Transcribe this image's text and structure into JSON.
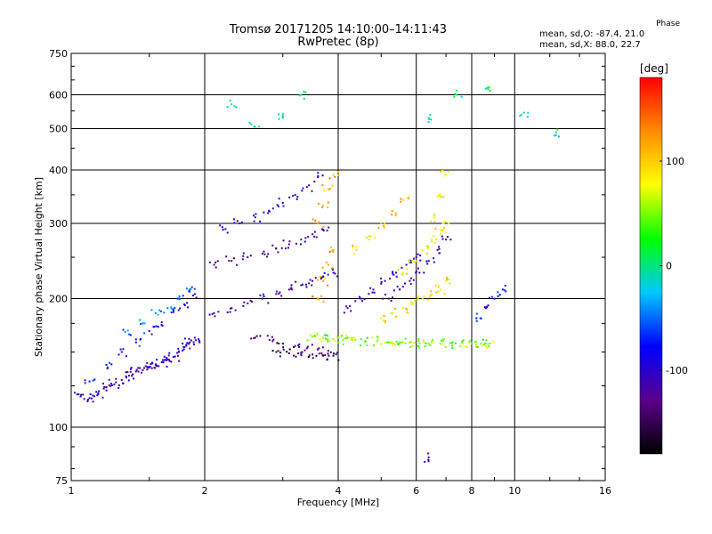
{
  "header": {
    "title_line1": "Tromsø 20171205 14:10:00–14:11:43",
    "title_line2": "RwPretec (8p)",
    "phase_title": "Phase",
    "phase_line1": "mean, sd,O: -87.4, 21.0",
    "phase_line2": "mean, sd,X: 88.0, 22.7"
  },
  "colorbar": {
    "unit": "[deg]",
    "ticks": [
      "100",
      "0",
      "-100"
    ],
    "tick_values": [
      100,
      0,
      -100
    ],
    "range": [
      -180,
      180
    ],
    "colors": [
      "#000000",
      "#5a008c",
      "#0000ff",
      "#00c8ff",
      "#00ff00",
      "#ffff00",
      "#ff8c00",
      "#ff0000"
    ]
  },
  "chart_data": {
    "type": "scatter",
    "title": "Tromsø 20171205 14:10:00–14:11:43",
    "subtitle": "RwPretec (8p)",
    "xlabel": "Frequency [MHz]",
    "ylabel": "Stationary phase Virtual Height [km]",
    "xscale": "log",
    "yscale": "log",
    "xlim": [
      1,
      16
    ],
    "ylim": [
      75,
      750
    ],
    "xticks": [
      1,
      2,
      4,
      6,
      8,
      10,
      16
    ],
    "yticks": [
      75,
      100,
      200,
      300,
      400,
      500,
      600,
      750
    ],
    "grid": true,
    "color_by": "phase [deg]",
    "series": [
      {
        "x": [
          1.05,
          1.1,
          1.15,
          1.2,
          1.25,
          1.3,
          1.35,
          1.4,
          1.45,
          1.5,
          1.55,
          1.6,
          1.65,
          1.7,
          1.75,
          1.8,
          1.85,
          1.9
        ],
        "y": [
          118,
          117,
          120,
          124,
          126,
          129,
          132,
          135,
          136,
          138,
          140,
          142,
          144,
          146,
          150,
          154,
          158,
          162
        ],
        "phase": -110
      },
      {
        "x": [
          1.1,
          1.2,
          1.3,
          1.4,
          1.5,
          1.6,
          1.7,
          1.8,
          1.9
        ],
        "y": [
          128,
          140,
          150,
          158,
          168,
          176,
          186,
          194,
          205
        ],
        "phase": -80
      },
      {
        "x": [
          1.35,
          1.45,
          1.55,
          1.65,
          1.75,
          1.85
        ],
        "y": [
          165,
          175,
          185,
          190,
          200,
          210
        ],
        "phase": -50
      },
      {
        "x": [
          2.1,
          2.3,
          2.5,
          2.7,
          2.9,
          3.1,
          3.3,
          3.5,
          3.7,
          3.9
        ],
        "y": [
          185,
          190,
          195,
          200,
          205,
          210,
          215,
          220,
          225,
          230
        ],
        "phase": -110
      },
      {
        "x": [
          2.1,
          2.3,
          2.5,
          2.7,
          2.9,
          3.1,
          3.3,
          3.5,
          3.7
        ],
        "y": [
          240,
          245,
          250,
          255,
          262,
          268,
          275,
          283,
          290
        ],
        "phase": -120
      },
      {
        "x": [
          2.2,
          2.4,
          2.6,
          2.8,
          3.0,
          3.2,
          3.4,
          3.6
        ],
        "y": [
          290,
          300,
          310,
          320,
          335,
          350,
          365,
          385
        ],
        "phase": -100
      },
      {
        "x": [
          2.6,
          2.8,
          3.0,
          3.2,
          3.4,
          3.6,
          3.8
        ],
        "y": [
          162,
          160,
          157,
          155,
          153,
          152,
          151
        ],
        "phase": -130
      },
      {
        "x": [
          2.9,
          3.1,
          3.3,
          3.5,
          3.7,
          3.9
        ],
        "y": [
          150,
          149,
          148,
          148,
          147,
          147
        ],
        "phase": -150
      },
      {
        "x": [
          3.5,
          3.7,
          3.9,
          4.1,
          4.3,
          4.6,
          4.9,
          5.2,
          5.5,
          5.8,
          6.1,
          6.4,
          6.8,
          7.2,
          7.6,
          8.0,
          8.4,
          8.8
        ],
        "y": [
          163,
          162,
          161,
          160,
          160,
          159,
          159,
          158,
          158,
          158,
          157,
          157,
          157,
          157,
          157,
          157,
          157,
          157
        ],
        "phase": 50
      },
      {
        "x": [
          3.6,
          3.7,
          3.8,
          3.9
        ],
        "y": [
          200,
          220,
          240,
          260
        ],
        "phase": 120
      },
      {
        "x": [
          3.6,
          3.7,
          3.8,
          3.9
        ],
        "y": [
          300,
          330,
          360,
          390
        ],
        "phase": 110
      },
      {
        "x": [
          4.2,
          4.5,
          4.8,
          5.1,
          5.4,
          5.7,
          6.0
        ],
        "y": [
          190,
          200,
          210,
          220,
          230,
          240,
          250
        ],
        "phase": -100
      },
      {
        "x": [
          4.4,
          4.7,
          5.0,
          5.3,
          5.6
        ],
        "y": [
          260,
          280,
          300,
          320,
          340
        ],
        "phase": 100
      },
      {
        "x": [
          5.2,
          5.5,
          5.8,
          6.1,
          6.4,
          6.7,
          7.0
        ],
        "y": [
          200,
          210,
          220,
          230,
          245,
          260,
          275
        ],
        "phase": -110
      },
      {
        "x": [
          5.6,
          5.9,
          6.2,
          6.5,
          6.8,
          7.1
        ],
        "y": [
          230,
          245,
          260,
          275,
          290,
          300
        ],
        "phase": 80
      },
      {
        "x": [
          5.0,
          5.3,
          5.6,
          5.9,
          6.2,
          6.5,
          6.8,
          7.0
        ],
        "y": [
          180,
          185,
          190,
          195,
          200,
          205,
          210,
          220
        ],
        "phase": 90
      },
      {
        "x": [
          6.6,
          6.8,
          7.0
        ],
        "y": [
          310,
          350,
          390
        ],
        "phase": 80
      },
      {
        "x": [
          8.2,
          8.6,
          9.0,
          9.4
        ],
        "y": [
          180,
          190,
          200,
          210
        ],
        "phase": -80
      },
      {
        "x": [
          2.3,
          2.6,
          3.0,
          3.3,
          6.4,
          7.4,
          8.6,
          10.5,
          12.4
        ],
        "y": [
          570,
          505,
          530,
          600,
          530,
          600,
          620,
          545,
          490
        ],
        "phase": 0
      },
      {
        "x": [
          6.4
        ],
        "y": [
          85
        ],
        "phase": -110
      }
    ]
  },
  "scatter_seed": 7
}
